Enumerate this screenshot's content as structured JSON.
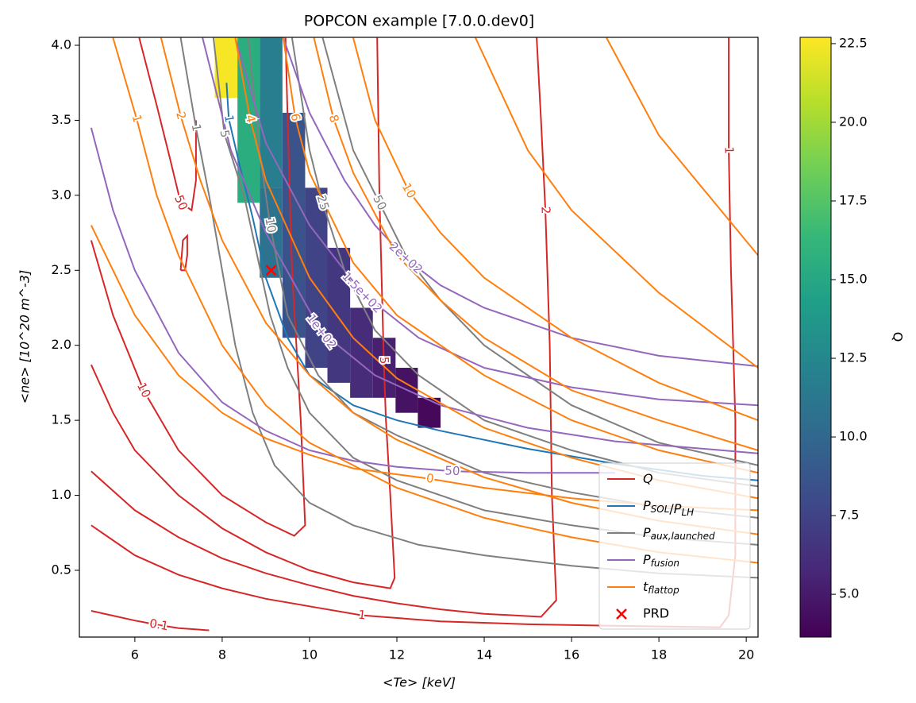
{
  "chart_data": {
    "type": "contour",
    "title": "POPCON example [7.0.0.dev0]",
    "x_label": "<Te>  [keV]",
    "y_label": "<ne> [10^20 m^-3]",
    "xlim": [
      4.73,
      20.27
    ],
    "ylim": [
      0.055,
      4.053
    ],
    "xticks": [
      6,
      8,
      10,
      12,
      14,
      16,
      18,
      20
    ],
    "yticks": [
      {
        "value": 0.5,
        "label": "0.5"
      },
      {
        "value": 1.0,
        "label": "1.0"
      },
      {
        "value": 1.5,
        "label": "1.5"
      },
      {
        "value": 2.0,
        "label": "2.0"
      },
      {
        "value": 2.5,
        "label": "2.5"
      },
      {
        "value": 3.0,
        "label": "3.0"
      },
      {
        "value": 3.5,
        "label": "3.5"
      },
      {
        "value": 4.0,
        "label": "4.0"
      }
    ],
    "legend": "lower right",
    "heatmap": {
      "colormap": "viridis",
      "colorbar_label": "Q",
      "clim": [
        3.64,
        22.7
      ],
      "cticks": [
        {
          "value": 5.0,
          "label": "5.0"
        },
        {
          "value": 7.5,
          "label": "7.5"
        },
        {
          "value": 10.0,
          "label": "10.0"
        },
        {
          "value": 12.5,
          "label": "12.5"
        },
        {
          "value": 15.0,
          "label": "15.0"
        },
        {
          "value": 17.5,
          "label": "17.5"
        },
        {
          "value": 20.0,
          "label": "20.0"
        },
        {
          "value": 22.5,
          "label": "22.5"
        }
      ],
      "cells": [
        {
          "x": [
            7.83,
            8.35
          ],
          "y": [
            3.65,
            4.05
          ],
          "value": 22.5
        },
        {
          "x": [
            8.35,
            8.86
          ],
          "y": [
            2.95,
            4.05
          ],
          "value": 15.5
        },
        {
          "x": [
            8.86,
            9.38
          ],
          "y": [
            3.05,
            4.05
          ],
          "value": 11.8
        },
        {
          "x": [
            8.86,
            9.38
          ],
          "y": [
            2.45,
            3.05
          ],
          "value": 10.8
        },
        {
          "x": [
            9.38,
            9.9
          ],
          "y": [
            2.05,
            3.55
          ],
          "value": 8.6
        },
        {
          "x": [
            9.9,
            10.41
          ],
          "y": [
            1.85,
            3.05
          ],
          "value": 7.5
        },
        {
          "x": [
            10.41,
            10.93
          ],
          "y": [
            1.75,
            2.65
          ],
          "value": 6.8
        },
        {
          "x": [
            10.93,
            11.45
          ],
          "y": [
            1.65,
            2.25
          ],
          "value": 6.0
        },
        {
          "x": [
            11.45,
            11.97
          ],
          "y": [
            1.65,
            2.05
          ],
          "value": 5.3
        },
        {
          "x": [
            11.97,
            12.48
          ],
          "y": [
            1.55,
            1.85
          ],
          "value": 4.6
        },
        {
          "x": [
            12.48,
            13.0
          ],
          "y": [
            1.45,
            1.65
          ],
          "value": 4.0
        }
      ]
    },
    "series": [
      {
        "name": "Q",
        "color": "#d62728",
        "contours": [
          {
            "level": 0.1,
            "x": [
              5,
              6,
              6.55,
              7,
              7.7
            ],
            "y": [
              0.23,
              0.165,
              0.135,
              0.115,
              0.1
            ]
          },
          {
            "level": 1,
            "x": [
              5,
              6,
              7,
              8,
              9,
              10,
              11.2,
              13,
              15,
              17,
              19.4,
              19.6
            ],
            "y": [
              0.8,
              0.6,
              0.47,
              0.38,
              0.31,
              0.26,
              0.2,
              0.16,
              0.14,
              0.13,
              0.12,
              0.2
            ]
          },
          {
            "level": 1,
            "x": [
              19.6,
              19.75,
              19.75,
              19.65,
              19.6,
              19.6
            ],
            "y": [
              0.2,
              0.6,
              1.5,
              2.5,
              3.3,
              4.05
            ]
          },
          {
            "level": 2,
            "x": [
              5,
              6,
              7,
              8,
              9,
              10,
              11,
              12,
              13,
              14,
              15.3,
              15.65,
              15.55,
              15.5,
              15.4,
              15.3,
              15.2
            ],
            "y": [
              1.16,
              0.9,
              0.72,
              0.58,
              0.48,
              0.4,
              0.33,
              0.28,
              0.24,
              0.21,
              0.19,
              0.3,
              1.0,
              2.0,
              2.9,
              3.5,
              4.05
            ]
          },
          {
            "level": 5,
            "x": [
              5,
              5.5,
              6,
              7,
              8,
              9,
              10,
              11,
              11.85,
              11.95,
              11.85,
              11.75,
              11.7,
              11.6,
              11.55
            ],
            "y": [
              1.87,
              1.55,
              1.3,
              1.0,
              0.78,
              0.62,
              0.5,
              0.42,
              0.38,
              0.45,
              1.0,
              1.5,
              1.9,
              3.0,
              4.05
            ]
          },
          {
            "level": 10,
            "x": [
              5,
              5.5,
              6.2,
              7,
              8,
              9,
              9.65,
              9.9,
              9.8,
              9.6,
              9.5,
              9.45
            ],
            "y": [
              2.7,
              2.2,
              1.7,
              1.3,
              1.0,
              0.82,
              0.73,
              0.8,
              1.5,
              2.5,
              3.5,
              4.05
            ]
          },
          {
            "level": 50,
            "x": [
              6.1,
              6.5,
              6.8,
              7.05,
              7.3,
              7.4,
              7.4
            ],
            "y": [
              4.05,
              3.6,
              3.25,
              2.95,
              2.9,
              3.1,
              3.5
            ]
          },
          {
            "x": [
              7.05,
              7.1,
              7.2,
              7.2,
              7.15,
              7.05
            ],
            "y": [
              2.5,
              2.7,
              2.73,
              2.6,
              2.5,
              2.5
            ]
          }
        ]
      },
      {
        "name": "PSOL/PLH",
        "color": "#1f77b4",
        "contours": [
          {
            "level": 1,
            "x": [
              8.1,
              8.15,
              8.4,
              8.7,
              9.0,
              9.5,
              10,
              11,
              12,
              13,
              14,
              15,
              16,
              17,
              18,
              19,
              20.27
            ],
            "y": [
              3.75,
              3.51,
              3.2,
              2.85,
              2.45,
              2.05,
              1.8,
              1.6,
              1.5,
              1.43,
              1.37,
              1.31,
              1.26,
              1.21,
              1.17,
              1.13,
              1.1
            ]
          }
        ]
      },
      {
        "name": "Paux,launched",
        "color": "#7f7f7f",
        "contours": [
          {
            "level": 1,
            "x": [
              7.05,
              7.4,
              7.7,
              8.0,
              8.3,
              8.7,
              9.2,
              10,
              11,
              12.5,
              14,
              16,
              18,
              20.27
            ],
            "y": [
              4.05,
              3.45,
              3.0,
              2.5,
              2.0,
              1.55,
              1.2,
              0.95,
              0.8,
              0.67,
              0.6,
              0.53,
              0.48,
              0.45
            ]
          },
          {
            "level": 5,
            "x": [
              7.8,
              8.05,
              8.5,
              8.8,
              9.1,
              9.5,
              10,
              11,
              12,
              14,
              16,
              18,
              20.27
            ],
            "y": [
              4.05,
              3.41,
              3.0,
              2.6,
              2.2,
              1.85,
              1.55,
              1.25,
              1.1,
              0.9,
              0.8,
              0.72,
              0.67
            ]
          },
          {
            "level": 10,
            "x": [
              8.6,
              8.85,
              9.1,
              9.5,
              10.2,
              11,
              12,
              14,
              16,
              18,
              20.27
            ],
            "y": [
              4.05,
              3.3,
              2.8,
              2.2,
              1.8,
              1.55,
              1.4,
              1.15,
              1.02,
              0.92,
              0.85
            ]
          },
          {
            "level": 25,
            "x": [
              9.6,
              10.0,
              10.3,
              10.8,
              11.5,
              12.5,
              14,
              16,
              18,
              20.27
            ],
            "y": [
              4.05,
              3.3,
              2.95,
              2.5,
              2.1,
              1.8,
              1.5,
              1.3,
              1.15,
              1.06
            ]
          },
          {
            "level": 50,
            "x": [
              10.3,
              11,
              11.6,
              12.2,
              13,
              14,
              15,
              16,
              18,
              20.27
            ],
            "y": [
              4.05,
              3.3,
              2.95,
              2.6,
              2.3,
              2.0,
              1.8,
              1.6,
              1.35,
              1.2
            ]
          }
        ]
      },
      {
        "name": "Pfusion",
        "color": "#9467bd",
        "contours": [
          {
            "level": 50,
            "x": [
              5,
              5.5,
              6,
              7,
              8,
              9,
              10,
              11,
              12,
              13.27,
              15,
              17
            ],
            "y": [
              3.45,
              2.9,
              2.5,
              1.95,
              1.62,
              1.43,
              1.3,
              1.23,
              1.19,
              1.16,
              1.15,
              1.15
            ]
          },
          {
            "level": {
              "value": 100,
              "label": "1e+02"
            },
            "x": [
              7.55,
              8.2,
              9,
              10.27,
              11.5,
              13,
              15,
              17,
              20.27
            ],
            "y": [
              4.05,
              3.3,
              2.75,
              2.09,
              1.8,
              1.6,
              1.45,
              1.36,
              1.28
            ]
          },
          {
            "level": {
              "value": 150,
              "label": "1.5e+02"
            },
            "x": [
              8.3,
              9,
              10,
              11.2,
              12.5,
              14,
              16,
              18,
              20.27
            ],
            "y": [
              4.05,
              3.35,
              2.8,
              2.35,
              2.05,
              1.85,
              1.72,
              1.64,
              1.6
            ]
          },
          {
            "level": {
              "value": 200,
              "label": "2e+02"
            },
            "x": [
              9.4,
              10,
              10.8,
              11.5,
              12.2,
              13,
              14,
              16,
              18,
              20.27
            ],
            "y": [
              4.05,
              3.55,
              3.1,
              2.8,
              2.58,
              2.4,
              2.25,
              2.05,
              1.93,
              1.86
            ]
          }
        ]
      },
      {
        "name": "tflattop",
        "color": "#ff7f0e",
        "contours": [
          {
            "level": 1,
            "x": [
              5.5,
              6.04,
              6.5,
              7,
              8,
              9,
              10,
              12,
              14,
              16,
              18,
              20.27
            ],
            "y": [
              4.05,
              3.51,
              3.0,
              2.6,
              2.0,
              1.6,
              1.35,
              1.05,
              0.85,
              0.72,
              0.62,
              0.55
            ]
          },
          {
            "level": 2,
            "x": [
              6.6,
              7.05,
              7.5,
              8,
              9,
              10,
              11,
              12,
              14,
              16,
              18,
              20.27
            ],
            "y": [
              4.05,
              3.53,
              3.1,
              2.7,
              2.15,
              1.8,
              1.55,
              1.37,
              1.12,
              0.95,
              0.83,
              0.74
            ]
          },
          {
            "level": 4,
            "x": [
              8.3,
              8.64,
              9,
              10,
              11,
              12,
              14,
              16,
              18,
              20.27
            ],
            "y": [
              4.05,
              3.51,
              3.1,
              2.45,
              2.05,
              1.78,
              1.45,
              1.25,
              1.1,
              0.98
            ]
          },
          {
            "level": 6,
            "x": [
              9.4,
              9.67,
              10,
              11,
              12,
              14,
              16,
              18,
              20.27
            ],
            "y": [
              4.05,
              3.52,
              3.15,
              2.55,
              2.2,
              1.8,
              1.5,
              1.3,
              1.15
            ]
          },
          {
            "level": 8,
            "x": [
              10.1,
              10.55,
              11,
              12,
              13,
              14,
              16,
              18,
              20.27
            ],
            "y": [
              4.05,
              3.51,
              3.15,
              2.6,
              2.3,
              2.05,
              1.7,
              1.5,
              1.3
            ]
          },
          {
            "level": 10,
            "x": [
              11,
              11.5,
              12.27,
              13,
              14,
              16,
              18,
              20.27
            ],
            "y": [
              4.05,
              3.5,
              3.03,
              2.75,
              2.45,
              2.05,
              1.75,
              1.5
            ]
          },
          {
            "level": 0,
            "x": [
              5,
              6,
              7,
              8,
              9,
              10,
              11,
              12.76,
              14,
              16,
              18,
              20.27
            ],
            "y": [
              2.8,
              2.2,
              1.8,
              1.55,
              1.38,
              1.27,
              1.18,
              1.11,
              1.05,
              0.98,
              0.93,
              0.9
            ]
          },
          {
            "x": [
              13.8,
              15,
              16,
              18,
              20.27
            ],
            "y": [
              4.05,
              3.3,
              2.9,
              2.35,
              1.85
            ]
          },
          {
            "x": [
              16.8,
              18,
              20.27
            ],
            "y": [
              4.05,
              3.4,
              2.6
            ]
          }
        ]
      }
    ],
    "marker": {
      "name": "PRD",
      "color": "#ff0000",
      "x": 9.12,
      "y": 2.5
    }
  }
}
